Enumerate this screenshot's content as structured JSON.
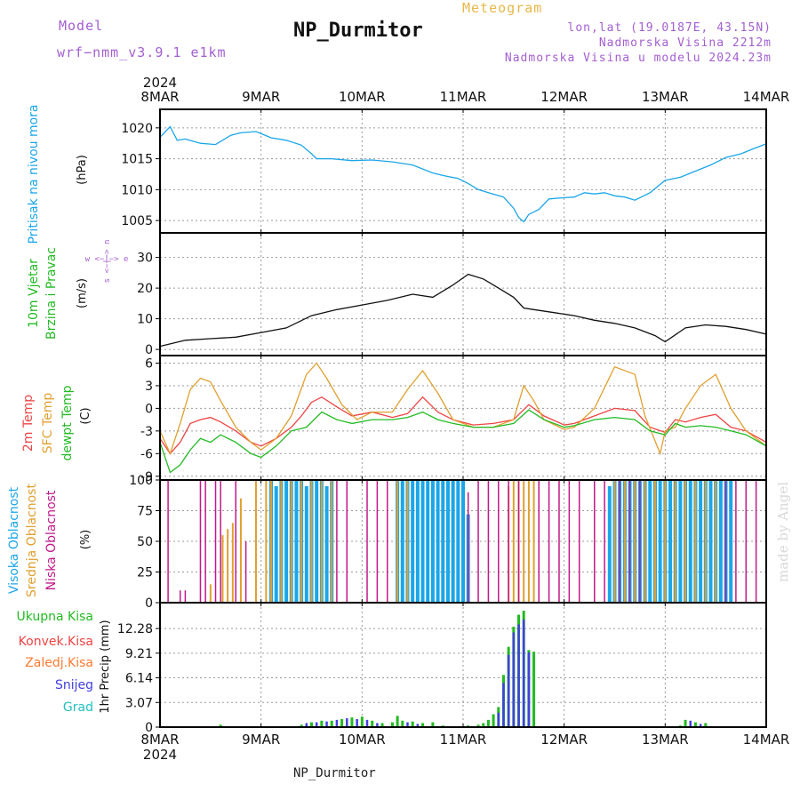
{
  "header": {
    "model_label": "Model",
    "model_version": "wrf−nmm_v3.9.1  e1km",
    "station_title": "NP_Durmitor",
    "meteogram_label": "Meteogram",
    "coords": "lon,lat (19.0187E, 43.15N)",
    "elevation": "Nadmorska Visina 2212m",
    "model_elevation": "Nadmorska Visina u modelu 2024.23m"
  },
  "footer": {
    "station": "NP_Durmitor",
    "credit": "made by Angel"
  },
  "colors": {
    "pressure": "#1ba6e8",
    "t2m": "#ee4444",
    "sfc": "#e0a030",
    "dewpt": "#22bb22",
    "high_cloud": "#1ba6e8",
    "mid_cloud": "#e0a030",
    "low_cloud": "#c2188a",
    "total_precip": "#22bb22",
    "conv_precip": "#ee4444",
    "frz_precip": "#ff7a30",
    "snow": "#4040e0",
    "hail": "#22c0c0",
    "wind_label": "#22bb22",
    "purple": "#a35fd0"
  },
  "time_axis": {
    "year": "2024",
    "days": [
      "8MAR",
      "9MAR",
      "10MAR",
      "11MAR",
      "12MAR",
      "13MAR",
      "14MAR"
    ]
  },
  "panels": {
    "pressure": {
      "label": "Pritisak na nivou mora",
      "unit": "(hPa)"
    },
    "wind": {
      "label1": "10m Vjetar",
      "label2": "Brzina i Pravac",
      "unit": "(m/s)",
      "compass": "w <−|−> e",
      "compass2": "s <−|−> n"
    },
    "temp": {
      "label_t2m": "2m Temp",
      "label_sfc": "SFC Temp",
      "label_dewpt": "dewpt Temp",
      "unit": "(C)"
    },
    "cloud": {
      "label_high": "Visoka Oblacnost",
      "label_mid": "Srednja Oblacnost",
      "label_low": "Niska Oblacnost",
      "unit": "(%)"
    },
    "precip": {
      "legend": [
        "Ukupna Kisa",
        "Konvek.Kisa",
        "Zaledj.Kisa",
        "Snijeg",
        "Grad"
      ],
      "unit": "1hr Precip (mm)"
    }
  },
  "chart_data": [
    {
      "type": "line",
      "title": "Pritisak na nivou mora",
      "ylabel": "(hPa)",
      "ylim": [
        1003,
        1023
      ],
      "yticks": [
        1005,
        1010,
        1015,
        1020
      ],
      "x_unit": "days from 8MAR 00Z",
      "xlim": [
        0,
        6
      ],
      "series": [
        {
          "name": "Pritisak na nivou mora",
          "x": [
            0,
            0.1,
            0.17,
            0.25,
            0.4,
            0.55,
            0.7,
            0.8,
            0.95,
            1.1,
            1.25,
            1.4,
            1.5,
            1.55,
            1.7,
            1.9,
            2.1,
            2.3,
            2.5,
            2.7,
            2.8,
            2.95,
            3.05,
            3.15,
            3.25,
            3.4,
            3.5,
            3.55,
            3.6,
            3.65,
            3.75,
            3.85,
            4.0,
            4.1,
            4.2,
            4.3,
            4.4,
            4.5,
            4.6,
            4.7,
            4.85,
            5.0,
            5.15,
            5.3,
            5.45,
            5.6,
            5.75,
            5.9,
            6.0
          ],
          "y": [
            1018.5,
            1020.2,
            1018.0,
            1018.2,
            1017.5,
            1017.3,
            1018.8,
            1019.2,
            1019.4,
            1018.4,
            1018.0,
            1017.2,
            1015.8,
            1015.0,
            1015.0,
            1014.7,
            1014.8,
            1014.5,
            1014.0,
            1012.7,
            1012.3,
            1011.8,
            1011.0,
            1010.0,
            1009.5,
            1008.8,
            1007.0,
            1005.5,
            1004.8,
            1006.0,
            1006.8,
            1008.5,
            1008.7,
            1008.8,
            1009.5,
            1009.3,
            1009.5,
            1009.0,
            1008.8,
            1008.3,
            1009.5,
            1011.5,
            1012.0,
            1013.0,
            1014.0,
            1015.2,
            1015.8,
            1016.8,
            1017.4
          ]
        }
      ]
    },
    {
      "type": "line",
      "title": "10m Vjetar Brzina i Pravac",
      "ylabel": "(m/s)",
      "ylim": [
        -2,
        38
      ],
      "yticks": [
        0,
        10,
        20,
        30
      ],
      "x_unit": "days from 8MAR 00Z",
      "xlim": [
        0,
        6
      ],
      "series": [
        {
          "name": "10m Vjetar",
          "x": [
            0,
            0.25,
            0.5,
            0.75,
            1.0,
            1.25,
            1.5,
            1.75,
            2.0,
            2.25,
            2.5,
            2.7,
            2.9,
            3.05,
            3.2,
            3.35,
            3.5,
            3.6,
            3.7,
            3.9,
            4.1,
            4.3,
            4.5,
            4.7,
            4.9,
            5.0,
            5.2,
            5.4,
            5.6,
            5.8,
            6.0
          ],
          "y": [
            1,
            3,
            3.5,
            4,
            5.5,
            7,
            11,
            13,
            14.5,
            16,
            18,
            17,
            21,
            24.5,
            23,
            20,
            17,
            13.5,
            13,
            12,
            11,
            9.5,
            8.5,
            7,
            4.5,
            2.5,
            7,
            8,
            7.5,
            6.5,
            5
          ]
        }
      ]
    },
    {
      "type": "line",
      "title": "2m Temp / SFC Temp / dewpt Temp",
      "ylabel": "(C)",
      "ylim": [
        -9.5,
        7
      ],
      "yticks": [
        -9,
        -6,
        -3,
        0,
        3,
        6
      ],
      "x_unit": "days from 8MAR 00Z",
      "xlim": [
        0,
        6
      ],
      "series": [
        {
          "name": "2m Temp",
          "x": [
            0,
            0.1,
            0.2,
            0.3,
            0.4,
            0.5,
            0.6,
            0.75,
            0.9,
            1.0,
            1.15,
            1.3,
            1.4,
            1.5,
            1.6,
            1.75,
            1.9,
            2.1,
            2.3,
            2.45,
            2.6,
            2.75,
            2.9,
            3.1,
            3.3,
            3.5,
            3.65,
            3.8,
            4.0,
            4.1,
            4.3,
            4.5,
            4.7,
            4.85,
            5.0,
            5.1,
            5.2,
            5.35,
            5.5,
            5.65,
            5.8,
            6.0
          ],
          "y": [
            -4,
            -6,
            -4.5,
            -2,
            -1.5,
            -1.2,
            -1.8,
            -3,
            -4.5,
            -5,
            -4,
            -2.5,
            -1,
            0.8,
            1.5,
            0.2,
            -1,
            -0.5,
            -1.2,
            -0.7,
            1.5,
            -0.5,
            -1.5,
            -2.2,
            -2,
            -1.5,
            0.5,
            -1,
            -2.2,
            -2,
            -1,
            0,
            -0.3,
            -2.5,
            -3.2,
            -1.5,
            -1.8,
            -1.2,
            -0.8,
            -2.5,
            -3,
            -4.5
          ]
        },
        {
          "name": "SFC Temp",
          "x": [
            0,
            0.1,
            0.2,
            0.3,
            0.4,
            0.5,
            0.6,
            0.75,
            0.9,
            1.0,
            1.15,
            1.3,
            1.45,
            1.55,
            1.65,
            1.8,
            1.95,
            2.1,
            2.3,
            2.45,
            2.6,
            2.75,
            2.9,
            3.1,
            3.3,
            3.5,
            3.6,
            3.7,
            3.8,
            4.0,
            4.1,
            4.3,
            4.5,
            4.7,
            4.8,
            4.95,
            5.0,
            5.1,
            5.2,
            5.35,
            5.5,
            5.65,
            5.8,
            6.0
          ],
          "y": [
            -3,
            -6,
            -2,
            2.5,
            4,
            3.5,
            1,
            -2.5,
            -4.5,
            -5.5,
            -4,
            -1,
            4.5,
            6,
            4,
            0.5,
            -1.5,
            -0.5,
            -0.5,
            2.5,
            5,
            2,
            -1.5,
            -2.5,
            -2.5,
            -1.5,
            3,
            1,
            -1.5,
            -2.8,
            -2.5,
            0,
            5.5,
            4.5,
            -1,
            -6,
            -3,
            -2.5,
            0,
            3,
            4.5,
            0,
            -3,
            -5
          ]
        },
        {
          "name": "dewpt Temp",
          "x": [
            0,
            0.1,
            0.2,
            0.3,
            0.4,
            0.5,
            0.6,
            0.75,
            0.9,
            1.0,
            1.15,
            1.3,
            1.45,
            1.6,
            1.75,
            1.9,
            2.1,
            2.3,
            2.45,
            2.6,
            2.75,
            2.9,
            3.1,
            3.3,
            3.5,
            3.65,
            3.8,
            4.0,
            4.1,
            4.3,
            4.5,
            4.7,
            4.85,
            5.0,
            5.1,
            5.2,
            5.35,
            5.5,
            5.65,
            5.8,
            6.0
          ],
          "y": [
            -4.5,
            -8.5,
            -7.5,
            -5.5,
            -4,
            -4.5,
            -3.5,
            -4.5,
            -6,
            -6.5,
            -5,
            -3,
            -2.5,
            -0.5,
            -1.5,
            -2,
            -1.5,
            -1.5,
            -1.2,
            -0.5,
            -1.5,
            -2,
            -2.5,
            -2.5,
            -2,
            -0.2,
            -1.5,
            -2.5,
            -2.3,
            -1.5,
            -1.2,
            -1.5,
            -3,
            -3.5,
            -2,
            -2.5,
            -2.3,
            -2.5,
            -3,
            -3.5,
            -5
          ]
        }
      ]
    },
    {
      "type": "bar",
      "title": "Oblacnost",
      "ylabel": "(%)",
      "ylim": [
        0,
        100
      ],
      "yticks": [
        0,
        25,
        50,
        75,
        100
      ],
      "x_unit": "days from 8MAR 00Z",
      "xlim": [
        0,
        6
      ],
      "series": [
        {
          "name": "Visoka Oblacnost",
          "x": [
            1.1,
            1.15,
            1.2,
            1.25,
            1.3,
            1.35,
            1.4,
            1.45,
            1.5,
            1.55,
            1.6,
            1.65,
            1.7,
            2.35,
            2.4,
            2.45,
            2.5,
            2.55,
            2.6,
            2.65,
            2.7,
            2.75,
            2.8,
            2.85,
            2.9,
            2.95,
            3.0,
            3.05,
            4.45,
            4.5,
            4.55,
            4.6,
            4.65,
            4.7,
            4.75,
            4.8,
            4.85,
            4.9,
            4.95,
            5.0,
            5.05,
            5.1,
            5.15,
            5.2,
            5.25,
            5.3,
            5.35,
            5.4,
            5.45,
            5.5,
            5.55,
            5.6,
            5.65
          ],
          "y": [
            100,
            95,
            100,
            100,
            100,
            100,
            100,
            95,
            100,
            100,
            100,
            95,
            100,
            100,
            100,
            100,
            100,
            100,
            100,
            100,
            100,
            100,
            100,
            100,
            100,
            100,
            100,
            72,
            95,
            100,
            100,
            100,
            100,
            100,
            100,
            100,
            100,
            100,
            100,
            100,
            100,
            100,
            100,
            100,
            100,
            100,
            100,
            100,
            100,
            100,
            100,
            100,
            100
          ]
        },
        {
          "name": "Srednja Oblacnost",
          "x": [
            0.5,
            0.62,
            0.67,
            0.72,
            0.8,
            0.95,
            1.05,
            1.1,
            1.2,
            1.3,
            1.4,
            1.5,
            1.6,
            1.7,
            2.35,
            2.45,
            3.45,
            3.5,
            3.55,
            3.6,
            3.65,
            3.7,
            4.5,
            4.6,
            4.7,
            4.8,
            4.9,
            5.0,
            5.1,
            5.2,
            5.3,
            5.4,
            5.5
          ],
          "y": [
            15,
            55,
            60,
            65,
            85,
            100,
            100,
            100,
            100,
            100,
            100,
            100,
            100,
            100,
            100,
            100,
            95,
            100,
            100,
            100,
            100,
            100,
            100,
            100,
            100,
            100,
            100,
            100,
            100,
            100,
            100,
            100,
            100
          ]
        },
        {
          "name": "Niska Oblacnost",
          "x": [
            0.08,
            0.2,
            0.25,
            0.4,
            0.45,
            0.55,
            0.6,
            0.75,
            0.85,
            1.75,
            1.85,
            2.05,
            2.15,
            2.25,
            3.05,
            3.15,
            3.25,
            3.35,
            3.45,
            3.55,
            3.75,
            3.85,
            3.95,
            4.05,
            4.15,
            4.3,
            4.4,
            4.55,
            4.65,
            4.75,
            5.6,
            5.7,
            5.8,
            5.9
          ],
          "y": [
            100,
            10,
            10,
            100,
            100,
            100,
            100,
            100,
            50,
            100,
            100,
            100,
            100,
            100,
            90,
            100,
            100,
            100,
            100,
            100,
            100,
            100,
            100,
            100,
            100,
            100,
            100,
            100,
            100,
            100,
            100,
            100,
            100,
            100
          ]
        }
      ]
    },
    {
      "type": "bar",
      "title": "1hr Precip",
      "ylabel": "1hr Precip (mm)",
      "ylim": [
        0,
        15.5
      ],
      "yticks": [
        0,
        3.07,
        6.14,
        9.21,
        12.28
      ],
      "x_unit": "days from 8MAR 00Z",
      "xlim": [
        0,
        6
      ],
      "series": [
        {
          "name": "Ukupna Kisa",
          "x": [
            0.6,
            1.4,
            1.5,
            1.6,
            1.7,
            1.8,
            1.9,
            2.0,
            2.1,
            2.2,
            2.3,
            2.35,
            2.4,
            2.5,
            2.6,
            2.7,
            2.8,
            3.05,
            3.15,
            3.2,
            3.25,
            3.3,
            3.35,
            3.4,
            3.45,
            3.5,
            3.55,
            3.6,
            3.65,
            3.7,
            5.15,
            5.2,
            5.3,
            5.4
          ],
          "y": [
            0.3,
            0.3,
            0.6,
            0.8,
            0.8,
            1.0,
            1.2,
            1.3,
            0.8,
            0.5,
            0.6,
            1.4,
            0.8,
            0.7,
            0.5,
            0.6,
            0.2,
            0.2,
            0.3,
            0.5,
            0.9,
            1.6,
            2.5,
            6.5,
            10.0,
            12.5,
            14.0,
            14.5,
            9.6,
            9.4,
            0.2,
            0.9,
            0.6,
            0.5
          ]
        },
        {
          "name": "Snijeg",
          "x": [
            1.45,
            1.55,
            1.65,
            1.75,
            1.85,
            1.95,
            2.05,
            2.15,
            2.45,
            2.55,
            3.35,
            3.4,
            3.45,
            3.5,
            3.55,
            3.6,
            3.65,
            5.25,
            5.35
          ],
          "y": [
            0.5,
            0.6,
            0.7,
            0.9,
            1.1,
            1.0,
            0.9,
            0.5,
            0.6,
            0.4,
            1.8,
            5.5,
            9.0,
            11.8,
            12.8,
            13.4,
            9.3,
            0.8,
            0.4
          ]
        }
      ]
    }
  ]
}
